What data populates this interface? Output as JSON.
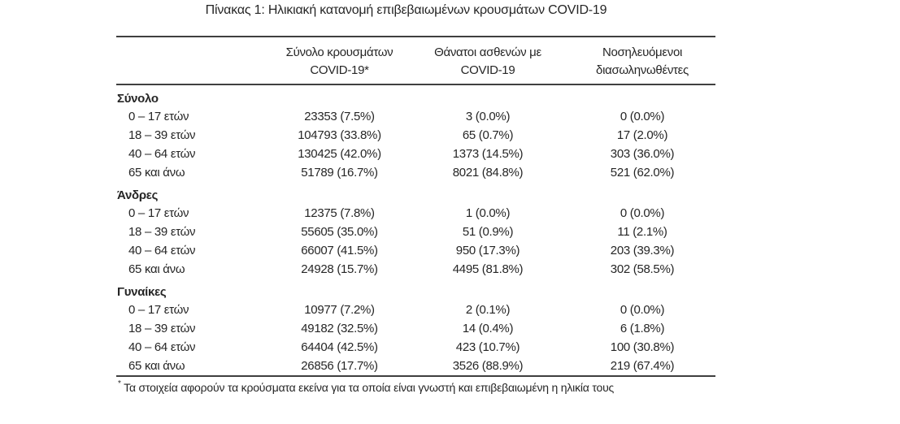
{
  "title": "Πίνακας 1: Ηλικιακή κατανομή επιβεβαιωμένων κρουσμάτων COVID-19",
  "table": {
    "columns": [
      {
        "line1": "Σύνολο κρουσμάτων",
        "line2": "COVID-19*"
      },
      {
        "line1": "Θάνατοι ασθενών με",
        "line2": "COVID-19"
      },
      {
        "line1": "Νοσηλευόμενοι",
        "line2": "διασωληνωθέντες"
      }
    ],
    "sections": [
      {
        "label": "Σύνολο",
        "rows": [
          {
            "label": "0 – 17 ετών",
            "cases": "23353 (7.5%)",
            "deaths": "3 (0.0%)",
            "intubated": "0 (0.0%)"
          },
          {
            "label": "18 – 39 ετών",
            "cases": "104793 (33.8%)",
            "deaths": "65 (0.7%)",
            "intubated": "17 (2.0%)"
          },
          {
            "label": "40 – 64 ετών",
            "cases": "130425 (42.0%)",
            "deaths": "1373 (14.5%)",
            "intubated": "303 (36.0%)"
          },
          {
            "label": "65 και άνω",
            "cases": "51789 (16.7%)",
            "deaths": "8021 (84.8%)",
            "intubated": "521 (62.0%)"
          }
        ]
      },
      {
        "label": "Άνδρες",
        "rows": [
          {
            "label": "0 – 17 ετών",
            "cases": "12375 (7.8%)",
            "deaths": "1 (0.0%)",
            "intubated": "0 (0.0%)"
          },
          {
            "label": "18 – 39 ετών",
            "cases": "55605 (35.0%)",
            "deaths": "51 (0.9%)",
            "intubated": "11 (2.1%)"
          },
          {
            "label": "40 – 64 ετών",
            "cases": "66007 (41.5%)",
            "deaths": "950 (17.3%)",
            "intubated": "203 (39.3%)"
          },
          {
            "label": "65 και άνω",
            "cases": "24928 (15.7%)",
            "deaths": "4495 (81.8%)",
            "intubated": "302 (58.5%)"
          }
        ]
      },
      {
        "label": "Γυναίκες",
        "rows": [
          {
            "label": "0 – 17 ετών",
            "cases": "10977 (7.2%)",
            "deaths": "2 (0.1%)",
            "intubated": "0 (0.0%)"
          },
          {
            "label": "18 – 39 ετών",
            "cases": "49182 (32.5%)",
            "deaths": "14 (0.4%)",
            "intubated": "6 (1.8%)"
          },
          {
            "label": "40 – 64 ετών",
            "cases": "64404 (42.5%)",
            "deaths": "423 (10.7%)",
            "intubated": "100 (30.8%)"
          },
          {
            "label": "65 και άνω",
            "cases": "26856 (17.7%)",
            "deaths": "3526 (88.9%)",
            "intubated": "219 (67.4%)"
          }
        ]
      }
    ]
  },
  "footnote": {
    "marker": "*",
    "text": "Τα στοιχεία αφορούν τα κρούσματα εκείνα για τα οποία είναι γνωστή και επιβεβαιωμένη η ηλικία τους"
  },
  "colors": {
    "text": "#262626",
    "rule": "#3f3f3f",
    "background": "#ffffff"
  }
}
